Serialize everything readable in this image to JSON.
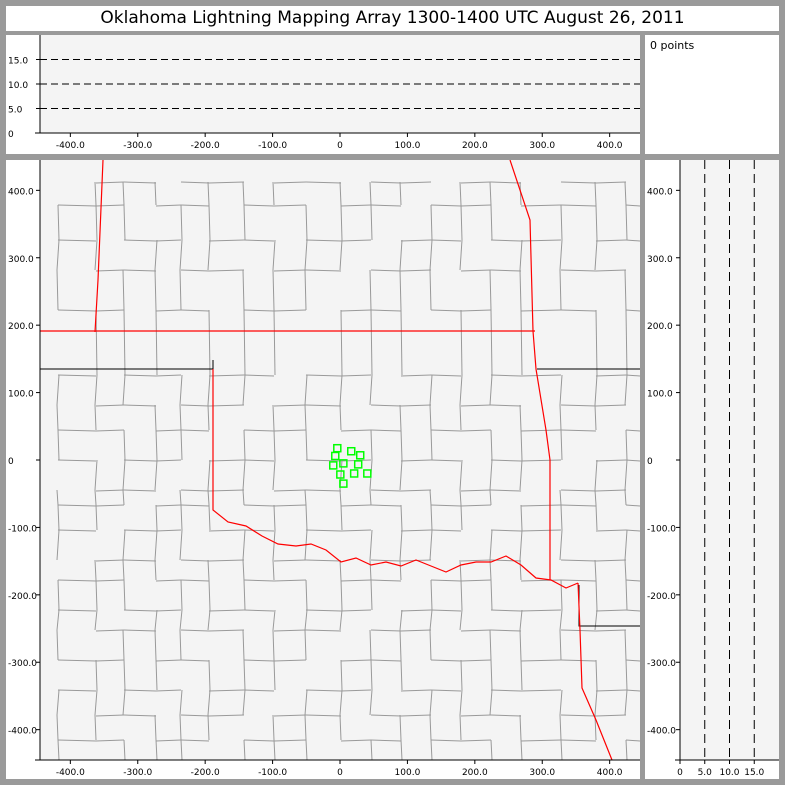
{
  "title": "Oklahoma Lightning Mapping Array   1300-1400 UTC  August 26, 2011",
  "info": {
    "points_label": "0 points"
  },
  "colors": {
    "plot_bg": "#f4f4f4",
    "border": "#9a9a9a",
    "state_border": "#ff0000",
    "county_line": "#999999",
    "source_marker": "#00ff00"
  },
  "chart_data": [
    {
      "type": "scatter",
      "panel": "plan-view",
      "xlim": [
        -445,
        445
      ],
      "ylim": [
        -445,
        445
      ],
      "xticks": [
        -400,
        -300,
        -200,
        -100,
        0,
        100,
        200,
        300,
        400
      ],
      "xtick_labels": [
        "-400.0",
        "-300.0",
        "-200.0",
        "-100.0",
        "0",
        "100.0",
        "200.0",
        "300.0",
        "400.0"
      ],
      "yticks": [
        400,
        300,
        200,
        100,
        0,
        -100,
        -200,
        -300,
        -400
      ],
      "ytick_labels": [
        "400.0",
        "300.0",
        "200.0",
        "100.0",
        "0",
        "-100.0",
        "-200.0",
        "-300.0",
        "-400.0"
      ],
      "marker": "hollow-square",
      "background_map": "Oklahoma and surrounding state and county boundaries",
      "points": [
        [
          -4,
          17.5
        ],
        [
          16.7,
          13
        ],
        [
          30,
          7
        ],
        [
          -7,
          6
        ],
        [
          5,
          -5
        ],
        [
          -10,
          -8
        ],
        [
          27,
          -6.5
        ],
        [
          0.5,
          -21.5
        ],
        [
          21,
          -20
        ],
        [
          40.5,
          -20
        ],
        [
          5,
          -35
        ]
      ]
    },
    {
      "type": "scatter",
      "panel": "east-west-altitude",
      "xlim": [
        -445,
        445
      ],
      "ylim": [
        0,
        20
      ],
      "xticks": [
        -400,
        -300,
        -200,
        -100,
        0,
        100,
        200,
        300,
        400
      ],
      "xtick_labels": [
        "-400.0",
        "-300.0",
        "-200.0",
        "-100.0",
        "0",
        "100.0",
        "200.0",
        "300.0",
        "400.0"
      ],
      "yticks": [
        0,
        5,
        10,
        15
      ],
      "ytick_labels": [
        "0",
        "5.0",
        "10.0",
        "15.0"
      ],
      "gridlines": "dashed at 5, 10, 15",
      "points": []
    },
    {
      "type": "scatter",
      "panel": "north-south-altitude",
      "xlim": [
        0,
        20
      ],
      "ylim": [
        -445,
        445
      ],
      "xticks": [
        0,
        5,
        10,
        15
      ],
      "xtick_labels": [
        "0",
        "5.0",
        "10.0",
        "15.0"
      ],
      "yticks": [
        400,
        300,
        200,
        100,
        0,
        -100,
        -200,
        -300,
        -400
      ],
      "ytick_labels": [
        "400.0",
        "300.0",
        "200.0",
        "100.0",
        "0",
        "-100.0",
        "-200.0",
        "-300.0",
        "-400.0"
      ],
      "gridlines": "dashed at 5, 10, 15",
      "points": []
    }
  ]
}
